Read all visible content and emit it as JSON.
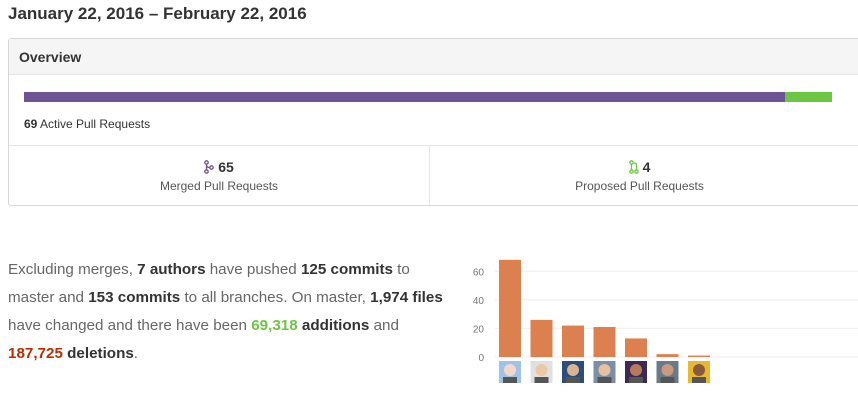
{
  "date_range": "January 22, 2016 – February 22, 2016",
  "overview": {
    "title": "Overview",
    "active_count": "69",
    "active_label": "Active Pull Requests",
    "merged_fraction": 0.942,
    "merged": {
      "count": "65",
      "label": "Merged Pull Requests",
      "icon": "git-merge-icon",
      "color": "#6e5494"
    },
    "proposed": {
      "count": "4",
      "label": "Proposed Pull Requests",
      "icon": "git-pull-request-icon",
      "color": "#6cc644"
    }
  },
  "summary": {
    "s1": "Excluding merges, ",
    "authors": "7 authors",
    "s2": " have pushed ",
    "commits_master": "125 commits",
    "s3": " to master and ",
    "commits_all": "153 commits",
    "s4": " to all branches. On master, ",
    "files": "1,974 files",
    "s5": " have changed and there have been ",
    "additions_num": "69,318",
    "additions_word": " additions",
    "s6": " and ",
    "deletions_num": "187,725",
    "deletions_word": " deletions",
    "s7": "."
  },
  "chart_data": {
    "type": "bar",
    "categories": [
      "author-1",
      "author-2",
      "author-3",
      "author-4",
      "author-5",
      "author-6",
      "author-7"
    ],
    "values": [
      68,
      26,
      22,
      21,
      13,
      2,
      1
    ],
    "ylim": [
      0,
      70
    ],
    "yticks": [
      "0",
      "20",
      "40",
      "60"
    ],
    "bar_color": "#dd8050",
    "grid": true
  }
}
